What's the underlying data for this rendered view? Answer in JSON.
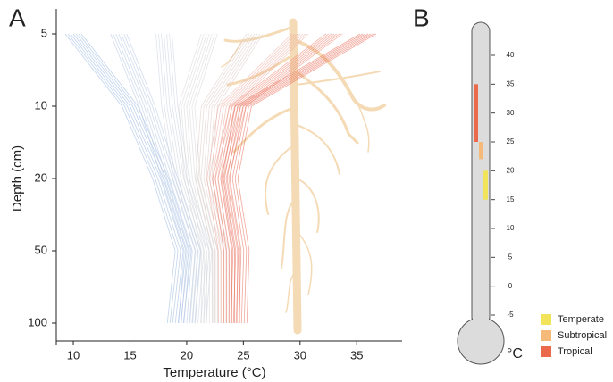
{
  "chart_data": [
    {
      "type": "line",
      "label": "A",
      "xlabel": "Temperature (°C)",
      "ylabel": "Depth (cm)",
      "categories": [
        5,
        10,
        20,
        50,
        100
      ],
      "xlim": [
        8.5,
        39
      ],
      "xticks": [
        10,
        15,
        20,
        25,
        30,
        35
      ],
      "series": [
        {
          "color": "#8fb1de",
          "values": [
            10,
            15,
            17.7,
            19.7,
            19
          ]
        },
        {
          "color": "#a9c0e0",
          "values": [
            14,
            16.5,
            18.5,
            20.5,
            20
          ]
        },
        {
          "color": "#c4cdda",
          "values": [
            18,
            18.5,
            19.5,
            21.5,
            21
          ]
        },
        {
          "color": "#cfcfcf",
          "values": [
            22,
            20,
            20.5,
            22,
            22
          ]
        },
        {
          "color": "#d9c4c0",
          "values": [
            26,
            22,
            21.5,
            23,
            23
          ]
        },
        {
          "color": "#e9a093",
          "values": [
            30,
            23.5,
            22.5,
            23.5,
            23.5
          ]
        },
        {
          "color": "#ec7f6c",
          "values": [
            33,
            24.5,
            23,
            24,
            24
          ]
        },
        {
          "color": "#e8614a",
          "values": [
            36,
            25,
            23.8,
            24.8,
            24.6
          ]
        }
      ]
    },
    {
      "type": "range",
      "label": "B",
      "unit": "°C",
      "ylim": [
        -5,
        40
      ],
      "yticks": [
        -5,
        0,
        5,
        10,
        15,
        20,
        25,
        30,
        35,
        40
      ],
      "series": [
        {
          "name": "Temperate",
          "color": "#f2e45a",
          "values": [
            15,
            20
          ]
        },
        {
          "name": "Subtropical",
          "color": "#f5b97a",
          "values": [
            22,
            25
          ]
        },
        {
          "name": "Tropical",
          "color": "#ec6a4c",
          "values": [
            25,
            35
          ]
        }
      ]
    }
  ]
}
